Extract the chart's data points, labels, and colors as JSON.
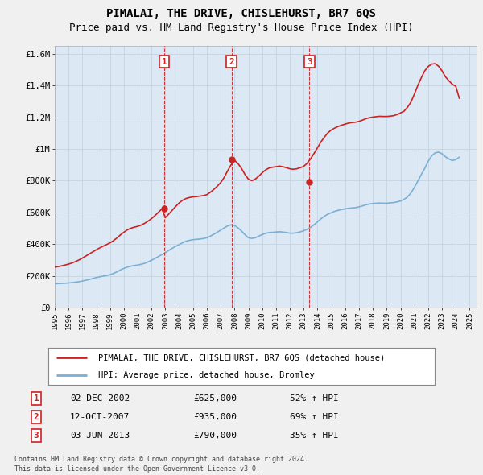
{
  "title": "PIMALAI, THE DRIVE, CHISLEHURST, BR7 6QS",
  "subtitle": "Price paid vs. HM Land Registry's House Price Index (HPI)",
  "title_fontsize": 10,
  "subtitle_fontsize": 9,
  "background_color": "#f0f0f0",
  "plot_bg_color": "#dce9f5",
  "hpi_color": "#7bafd4",
  "price_color": "#cc2222",
  "ylim": [
    0,
    1650000
  ],
  "yticks": [
    0,
    200000,
    400000,
    600000,
    800000,
    1000000,
    1200000,
    1400000,
    1600000
  ],
  "ytick_labels": [
    "£0",
    "£200K",
    "£400K",
    "£600K",
    "£800K",
    "£1M",
    "£1.2M",
    "£1.4M",
    "£1.6M"
  ],
  "legend_price_label": "PIMALAI, THE DRIVE, CHISLEHURST, BR7 6QS (detached house)",
  "legend_hpi_label": "HPI: Average price, detached house, Bromley",
  "transactions": [
    {
      "num": 1,
      "date": "02-DEC-2002",
      "price": 625000,
      "year": 2002.92,
      "pct": "52%",
      "dir": "↑"
    },
    {
      "num": 2,
      "date": "12-OCT-2007",
      "price": 935000,
      "year": 2007.78,
      "pct": "69%",
      "dir": "↑"
    },
    {
      "num": 3,
      "date": "03-JUN-2013",
      "price": 790000,
      "year": 2013.42,
      "pct": "35%",
      "dir": "↑"
    }
  ],
  "footer_line1": "Contains HM Land Registry data © Crown copyright and database right 2024.",
  "footer_line2": "This data is licensed under the Open Government Licence v3.0.",
  "hpi_data_years": [
    1995.0,
    1995.25,
    1995.5,
    1995.75,
    1996.0,
    1996.25,
    1996.5,
    1996.75,
    1997.0,
    1997.25,
    1997.5,
    1997.75,
    1998.0,
    1998.25,
    1998.5,
    1998.75,
    1999.0,
    1999.25,
    1999.5,
    1999.75,
    2000.0,
    2000.25,
    2000.5,
    2000.75,
    2001.0,
    2001.25,
    2001.5,
    2001.75,
    2002.0,
    2002.25,
    2002.5,
    2002.75,
    2003.0,
    2003.25,
    2003.5,
    2003.75,
    2004.0,
    2004.25,
    2004.5,
    2004.75,
    2005.0,
    2005.25,
    2005.5,
    2005.75,
    2006.0,
    2006.25,
    2006.5,
    2006.75,
    2007.0,
    2007.25,
    2007.5,
    2007.75,
    2008.0,
    2008.25,
    2008.5,
    2008.75,
    2009.0,
    2009.25,
    2009.5,
    2009.75,
    2010.0,
    2010.25,
    2010.5,
    2010.75,
    2011.0,
    2011.25,
    2011.5,
    2011.75,
    2012.0,
    2012.25,
    2012.5,
    2012.75,
    2013.0,
    2013.25,
    2013.5,
    2013.75,
    2014.0,
    2014.25,
    2014.5,
    2014.75,
    2015.0,
    2015.25,
    2015.5,
    2015.75,
    2016.0,
    2016.25,
    2016.5,
    2016.75,
    2017.0,
    2017.25,
    2017.5,
    2017.75,
    2018.0,
    2018.25,
    2018.5,
    2018.75,
    2019.0,
    2019.25,
    2019.5,
    2019.75,
    2020.0,
    2020.25,
    2020.5,
    2020.75,
    2021.0,
    2021.25,
    2021.5,
    2021.75,
    2022.0,
    2022.25,
    2022.5,
    2022.75,
    2023.0,
    2023.25,
    2023.5,
    2023.75,
    2024.0,
    2024.25
  ],
  "hpi_data_values": [
    150000,
    151000,
    152000,
    153000,
    155000,
    157000,
    160000,
    163000,
    167000,
    172000,
    177000,
    183000,
    189000,
    194000,
    198000,
    202000,
    207000,
    215000,
    225000,
    237000,
    247000,
    255000,
    261000,
    265000,
    268000,
    273000,
    279000,
    288000,
    298000,
    310000,
    322000,
    334000,
    347000,
    361000,
    374000,
    386000,
    397000,
    409000,
    418000,
    424000,
    428000,
    430000,
    432000,
    435000,
    440000,
    450000,
    462000,
    475000,
    488000,
    502000,
    515000,
    522000,
    517000,
    503000,
    483000,
    460000,
    440000,
    436000,
    440000,
    450000,
    460000,
    468000,
    473000,
    474000,
    476000,
    478000,
    476000,
    473000,
    469000,
    469000,
    472000,
    477000,
    484000,
    493000,
    506000,
    522000,
    541000,
    560000,
    576000,
    589000,
    598000,
    607000,
    613000,
    618000,
    622000,
    626000,
    628000,
    630000,
    635000,
    641000,
    648000,
    653000,
    656000,
    658000,
    659000,
    658000,
    658000,
    660000,
    662000,
    666000,
    672000,
    682000,
    697000,
    722000,
    757000,
    797000,
    838000,
    877000,
    922000,
    956000,
    975000,
    980000,
    970000,
    951000,
    937000,
    927000,
    933000,
    948000
  ],
  "price_data_years": [
    1995.0,
    1995.25,
    1995.5,
    1995.75,
    1996.0,
    1996.25,
    1996.5,
    1996.75,
    1997.0,
    1997.25,
    1997.5,
    1997.75,
    1998.0,
    1998.25,
    1998.5,
    1998.75,
    1999.0,
    1999.25,
    1999.5,
    1999.75,
    2000.0,
    2000.25,
    2000.5,
    2000.75,
    2001.0,
    2001.25,
    2001.5,
    2001.75,
    2002.0,
    2002.25,
    2002.5,
    2002.75,
    2003.0,
    2003.25,
    2003.5,
    2003.75,
    2004.0,
    2004.25,
    2004.5,
    2004.75,
    2005.0,
    2005.25,
    2005.5,
    2005.75,
    2006.0,
    2006.25,
    2006.5,
    2006.75,
    2007.0,
    2007.25,
    2007.5,
    2007.75,
    2008.0,
    2008.25,
    2008.5,
    2008.75,
    2009.0,
    2009.25,
    2009.5,
    2009.75,
    2010.0,
    2010.25,
    2010.5,
    2010.75,
    2011.0,
    2011.25,
    2011.5,
    2011.75,
    2012.0,
    2012.25,
    2012.5,
    2012.75,
    2013.0,
    2013.25,
    2013.5,
    2013.75,
    2014.0,
    2014.25,
    2014.5,
    2014.75,
    2015.0,
    2015.25,
    2015.5,
    2015.75,
    2016.0,
    2016.25,
    2016.5,
    2016.75,
    2017.0,
    2017.25,
    2017.5,
    2017.75,
    2018.0,
    2018.25,
    2018.5,
    2018.75,
    2019.0,
    2019.25,
    2019.5,
    2019.75,
    2020.0,
    2020.25,
    2020.5,
    2020.75,
    2021.0,
    2021.25,
    2021.5,
    2021.75,
    2022.0,
    2022.25,
    2022.5,
    2022.75,
    2023.0,
    2023.25,
    2023.5,
    2023.75,
    2024.0,
    2024.25
  ],
  "price_data_values": [
    255000,
    258000,
    263000,
    268000,
    274000,
    281000,
    290000,
    300000,
    312000,
    325000,
    338000,
    351000,
    364000,
    376000,
    387000,
    397000,
    408000,
    422000,
    439000,
    458000,
    475000,
    490000,
    500000,
    507000,
    512000,
    520000,
    531000,
    545000,
    561000,
    580000,
    601000,
    622000,
    567000,
    590000,
    614000,
    638000,
    660000,
    677000,
    688000,
    694000,
    698000,
    700000,
    703000,
    706000,
    712000,
    727000,
    745000,
    765000,
    788000,
    820000,
    862000,
    900000,
    928000,
    908000,
    878000,
    840000,
    810000,
    800000,
    810000,
    828000,
    850000,
    868000,
    880000,
    885000,
    888000,
    892000,
    888000,
    882000,
    875000,
    872000,
    875000,
    882000,
    890000,
    910000,
    938000,
    972000,
    1008000,
    1045000,
    1075000,
    1102000,
    1120000,
    1132000,
    1142000,
    1150000,
    1157000,
    1163000,
    1167000,
    1169000,
    1174000,
    1182000,
    1191000,
    1197000,
    1201000,
    1204000,
    1206000,
    1205000,
    1205000,
    1207000,
    1210000,
    1217000,
    1227000,
    1238000,
    1262000,
    1295000,
    1345000,
    1400000,
    1448000,
    1492000,
    1520000,
    1535000,
    1538000,
    1522000,
    1493000,
    1455000,
    1430000,
    1408000,
    1395000,
    1320000
  ]
}
